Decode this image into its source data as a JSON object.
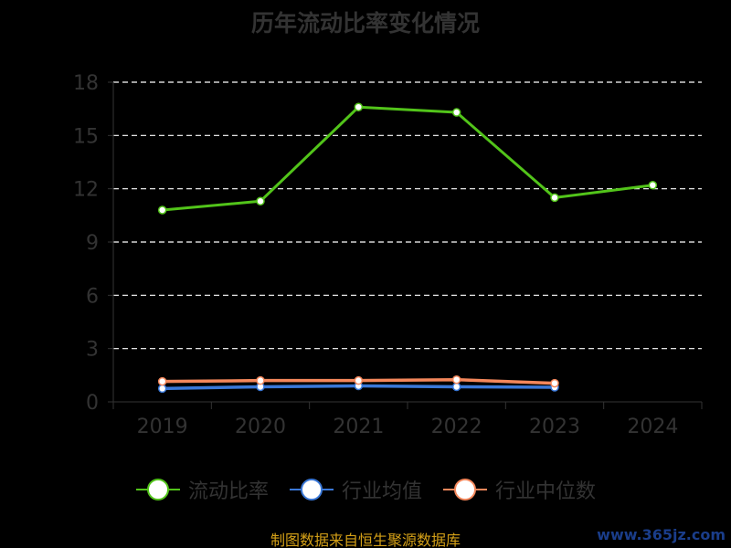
{
  "title": "历年流动比率变化情况",
  "source": "制图数据来自恒生聚源数据库",
  "watermark": "www.365jz.com",
  "chart_data": {
    "type": "line",
    "title": "历年流动比率变化情况",
    "categories": [
      "2019",
      "2020",
      "2021",
      "2022",
      "2023",
      "2024"
    ],
    "y_ticks": [
      "0",
      "3",
      "6",
      "9",
      "12",
      "15",
      "18"
    ],
    "ylim": [
      0,
      18
    ],
    "grid": "horizontal dashed",
    "legend_position": "bottom",
    "series": [
      {
        "name": "流动比率",
        "color": "#52c41a",
        "values": [
          10.8,
          11.3,
          16.6,
          16.3,
          11.5,
          12.2
        ]
      },
      {
        "name": "行业均值",
        "color": "#3a78d8",
        "values": [
          0.75,
          0.85,
          0.9,
          0.85,
          0.82,
          null
        ]
      },
      {
        "name": "行业中位数",
        "color": "#f4875b",
        "values": [
          1.15,
          1.2,
          1.2,
          1.25,
          1.05,
          null
        ]
      }
    ]
  }
}
